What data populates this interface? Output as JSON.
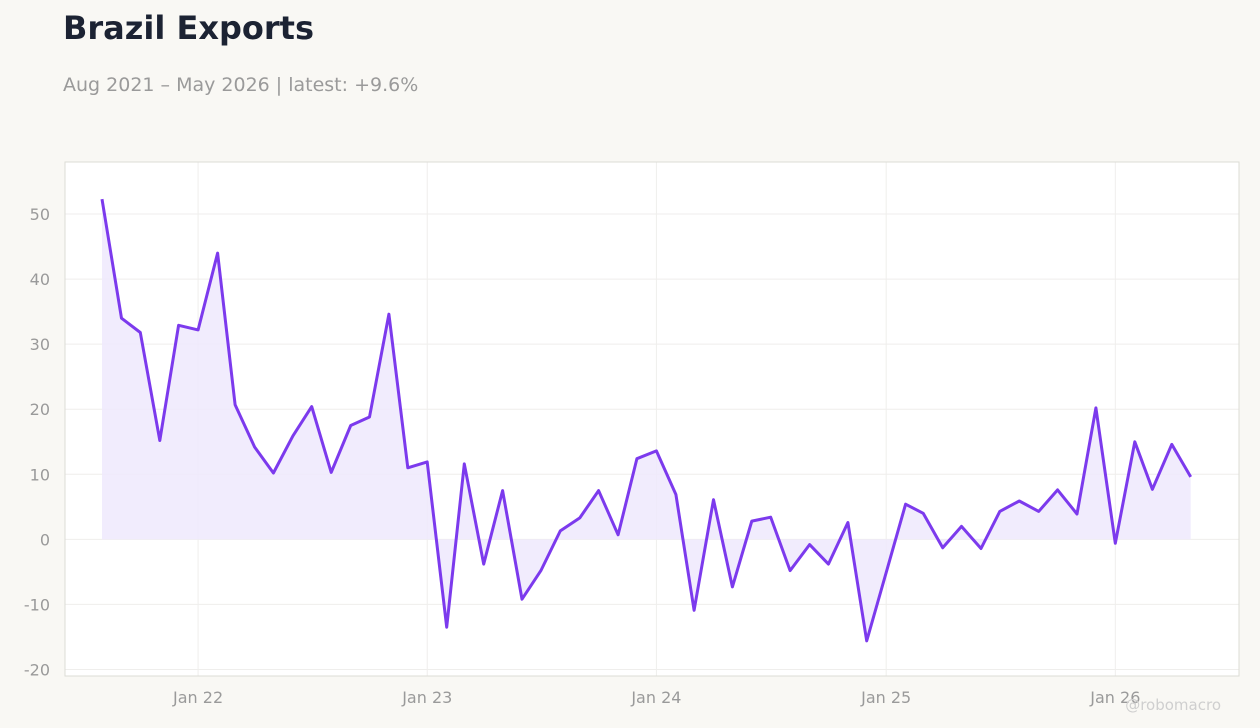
{
  "header": {
    "title": "Brazil Exports",
    "subtitle": "Aug 2021 – May 2026 | latest: +9.6%"
  },
  "watermark": "@robomacro",
  "colors": {
    "line": "#7c3aed",
    "fill": "#efe9fd",
    "grid": "#efeeec",
    "plot_bg": "#ffffff",
    "frame": "#dcdcd6"
  },
  "chart_data": {
    "type": "area",
    "title": "Brazil Exports",
    "subtitle": "Aug 2021 – May 2026 | latest: +9.6%",
    "xlabel": "",
    "ylabel": "",
    "ylim": [
      -21,
      58
    ],
    "xlim": [
      "2021-06-03",
      "2026-07-17"
    ],
    "y_ticks": [
      -20,
      -10,
      0,
      10,
      20,
      30,
      40,
      50
    ],
    "x_ticks": [
      {
        "label": "Jan 22",
        "date": "2022-01-01"
      },
      {
        "label": "Jan 23",
        "date": "2023-01-01"
      },
      {
        "label": "Jan 24",
        "date": "2024-01-01"
      },
      {
        "label": "Jan 25",
        "date": "2025-01-01"
      },
      {
        "label": "Jan 26",
        "date": "2026-01-01"
      }
    ],
    "grid": true,
    "legend": "none",
    "series": [
      {
        "x": [
          "2021-08",
          "2021-09",
          "2021-10",
          "2021-11",
          "2021-12",
          "2022-01",
          "2022-02",
          "2022-03",
          "2022-04",
          "2022-05",
          "2022-06",
          "2022-07",
          "2022-08",
          "2022-09",
          "2022-10",
          "2022-11",
          "2022-12",
          "2023-01",
          "2023-02",
          "2023-03",
          "2023-04",
          "2023-05",
          "2023-06",
          "2023-07",
          "2023-08",
          "2023-09",
          "2023-10",
          "2023-11",
          "2023-12",
          "2024-01",
          "2024-02",
          "2024-03",
          "2024-04",
          "2024-05",
          "2024-06",
          "2024-07",
          "2024-08",
          "2024-09",
          "2024-10",
          "2024-11",
          "2024-12",
          "2025-01",
          "2025-02",
          "2025-03",
          "2025-04",
          "2025-05",
          "2025-06",
          "2025-07",
          "2025-08",
          "2025-09",
          "2025-10",
          "2025-11",
          "2025-12",
          "2026-01",
          "2026-02",
          "2026-03",
          "2026-04",
          "2026-05"
        ],
        "values": [
          52.3,
          34.0,
          31.8,
          15.2,
          32.9,
          32.2,
          44.0,
          20.7,
          14.2,
          10.2,
          15.9,
          20.4,
          10.3,
          17.5,
          18.8,
          34.6,
          11.0,
          11.9,
          -13.5,
          11.6,
          -3.8,
          7.5,
          -9.2,
          -4.8,
          1.3,
          3.3,
          7.5,
          0.7,
          12.4,
          13.6,
          6.9,
          -10.9,
          6.1,
          -7.3,
          2.8,
          3.4,
          -4.8,
          -0.8,
          -3.8,
          2.6,
          -15.6,
          -5.1,
          5.4,
          4.0,
          -1.3,
          2.0,
          -1.4,
          4.3,
          5.9,
          4.3,
          7.6,
          3.9,
          20.2,
          -0.6,
          15.0,
          7.7,
          14.6,
          9.6
        ]
      }
    ]
  }
}
